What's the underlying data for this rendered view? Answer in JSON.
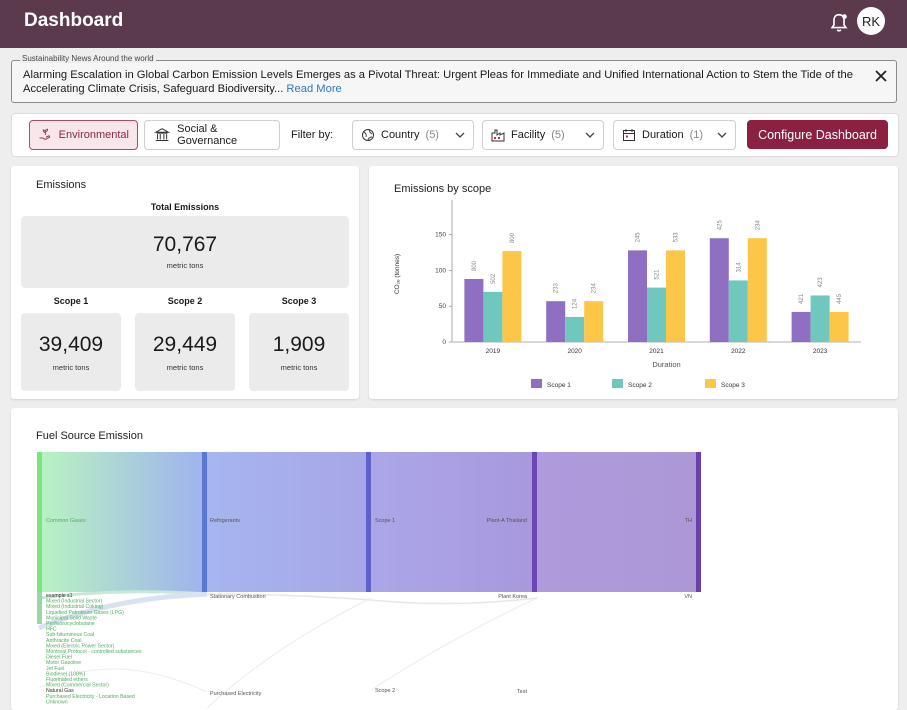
{
  "header": {
    "title": "Dashboard",
    "avatar": "RK"
  },
  "news": {
    "legend": "Sustainability News Around the world",
    "text": "Alarming Escalation in Global Carbon Emission Levels Emerges as a Pivotal Threat: Urgent Pleas for Immediate and Unified International Action to Stem the Tide of the Accelerating Climate Crisis, Safeguard Biodiversity...",
    "read_more": "Read More"
  },
  "filters": {
    "tab_environmental": "Environmental",
    "tab_social": "Social & Governance",
    "filter_by": "Filter by:",
    "country": {
      "label": "Country",
      "count": "(5)"
    },
    "facility": {
      "label": "Facility",
      "count": "(5)"
    },
    "duration": {
      "label": "Duration",
      "count": "(1)"
    },
    "configure": "Configure Dashboard"
  },
  "emissions": {
    "title": "Emissions",
    "total_label": "Total Emissions",
    "total_value": "70,767",
    "unit": "metric tons",
    "scopes": [
      {
        "label": "Scope 1",
        "value": "39,409",
        "unit": "metric tons"
      },
      {
        "label": "Scope 2",
        "value": "29,449",
        "unit": "metric tons"
      },
      {
        "label": "Scope 3",
        "value": "1,909",
        "unit": "metric tons"
      }
    ]
  },
  "chart_data": {
    "type": "bar",
    "title": "Emissions by scope",
    "xlabel": "Duration",
    "ylabel": "CO₂ₑ (tonnes)",
    "ylim": [
      0,
      190
    ],
    "yticks": [
      0,
      50,
      100,
      150
    ],
    "categories": [
      "2019",
      "2020",
      "2021",
      "2022",
      "2023"
    ],
    "series": [
      {
        "name": "Scope 1",
        "color": "#8e6fc1",
        "values": [
          88,
          57,
          128,
          145,
          42
        ],
        "labels": [
          "800",
          "233",
          "245",
          "425",
          "421"
        ]
      },
      {
        "name": "Scope 2",
        "color": "#6fc7bd",
        "values": [
          70,
          35,
          76,
          86,
          65
        ],
        "labels": [
          "502",
          "124",
          "521",
          "314",
          "423"
        ]
      },
      {
        "name": "Scope 3",
        "color": "#fcc748",
        "values": [
          127,
          57,
          128,
          145,
          42
        ],
        "labels": [
          "800",
          "234",
          "533",
          "234",
          "445"
        ]
      }
    ],
    "legend_position": "bottom"
  },
  "fuel": {
    "title": "Fuel Source Emission",
    "columns": [
      [
        "Common Gases",
        "Refrigerants",
        "Scope 1",
        "Plant-A Thailand",
        "TH"
      ],
      [
        "",
        "Stationary Combustion",
        "",
        "Plant Korea",
        "VN"
      ],
      [
        "",
        "Purchased Electricity",
        "Scope 2",
        "Test",
        ""
      ]
    ],
    "source_list": [
      "example s1",
      "Mixed (Industrial Sector)",
      "Mixed (Industrial Coking)",
      "Liquefied Petroleum Gases (LPG)",
      "Municipal Solid Waste",
      "Perfluorocyclobutane",
      "HFC",
      "Sub-bituminous Coal",
      "Anthracite Coal",
      "Mixed (Electric Power Sector)",
      "Montreal Protocol - controlled substances",
      "Diesel Fuel",
      "Motor Gasoline",
      "Jet Fuel",
      "Biodiesel (100%)",
      "Fluorinated ethers",
      "Mixed (Commercial Sector)",
      "Natural Gas",
      "Purchased Electricity - Location Based",
      "Unknown"
    ]
  }
}
